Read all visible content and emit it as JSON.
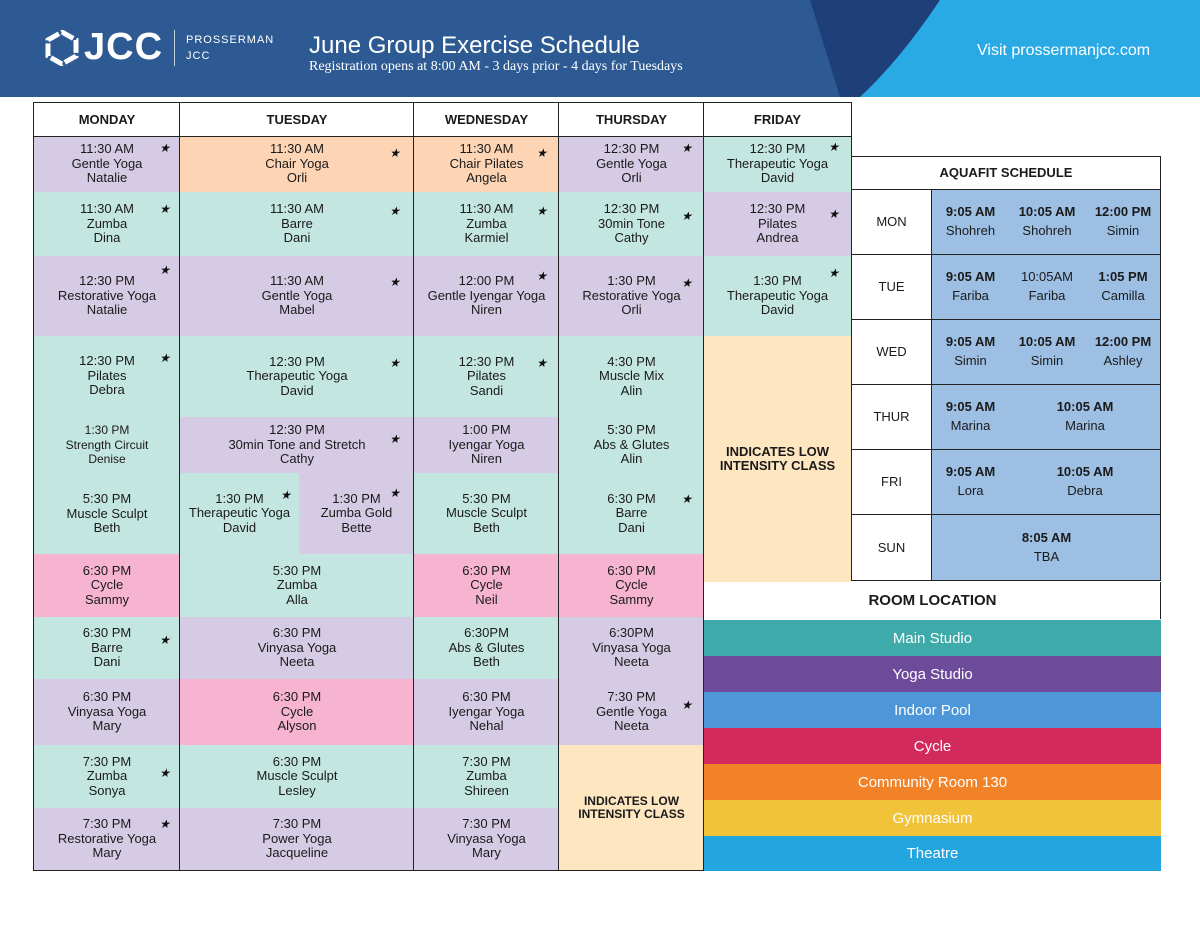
{
  "header": {
    "logo_text": "JCC",
    "logo_sub_line1": "PROSSERMAN",
    "logo_sub_line2": "JCC",
    "title": "June Group Exercise Schedule",
    "subtitle": "Registration opens at 8:00 AM - 3 days prior - 4 days for Tuesdays",
    "visit_text": "Visit prossermanjcc.com",
    "colors": {
      "dark_blue": "#2d5a93",
      "light_blue": "#2aaae4",
      "navy": "#1f3f78"
    }
  },
  "days": [
    "MONDAY",
    "TUESDAY",
    "WEDNESDAY",
    "THURSDAY",
    "FRIDAY"
  ],
  "legend_colors": {
    "teal": "#c4e6e1",
    "purple": "#d6cbe4",
    "peach": "#fdd4b4",
    "pink": "#f6b4d1",
    "cream": "#fde6c0"
  },
  "classes": [
    {
      "day": "MONDAY",
      "time": "11:30 AM",
      "name": "Gentle Yoga",
      "instructor": "Natalie",
      "color": "purple",
      "star": true
    },
    {
      "day": "MONDAY",
      "time": "11:30 AM",
      "name": "Zumba",
      "instructor": "Dina",
      "color": "teal",
      "star": true
    },
    {
      "day": "MONDAY",
      "time": "12:30 PM",
      "name": "Restorative Yoga",
      "instructor": "Natalie",
      "color": "purple",
      "star": true
    },
    {
      "day": "MONDAY",
      "time": "12:30 PM",
      "name": "Pilates",
      "instructor": "Debra",
      "color": "teal",
      "star": true
    },
    {
      "day": "MONDAY",
      "time": "1:30 PM",
      "name": "Strength Circuit",
      "instructor": "Denise",
      "color": "teal",
      "star": false
    },
    {
      "day": "MONDAY",
      "time": "5:30 PM",
      "name": "Muscle Sculpt",
      "instructor": "Beth",
      "color": "teal",
      "star": false
    },
    {
      "day": "MONDAY",
      "time": "6:30 PM",
      "name": "Cycle",
      "instructor": "Sammy",
      "color": "pink",
      "star": false
    },
    {
      "day": "MONDAY",
      "time": "6:30 PM",
      "name": "Barre",
      "instructor": "Dani",
      "color": "teal",
      "star": true
    },
    {
      "day": "MONDAY",
      "time": "6:30 PM",
      "name": "Vinyasa Yoga",
      "instructor": "Mary",
      "color": "purple",
      "star": false
    },
    {
      "day": "MONDAY",
      "time": "7:30 PM",
      "name": "Zumba",
      "instructor": "Sonya",
      "color": "teal",
      "star": true
    },
    {
      "day": "MONDAY",
      "time": "7:30 PM",
      "name": "Restorative Yoga",
      "instructor": "Mary",
      "color": "purple",
      "star": true
    },
    {
      "day": "TUESDAY",
      "time": "11:30 AM",
      "name": "Chair Yoga",
      "instructor": "Orli",
      "color": "peach",
      "star": true
    },
    {
      "day": "TUESDAY",
      "time": "11:30 AM",
      "name": "Barre",
      "instructor": "Dani",
      "color": "teal",
      "star": true
    },
    {
      "day": "TUESDAY",
      "time": "11:30 AM",
      "name": "Gentle Yoga",
      "instructor": "Mabel",
      "color": "purple",
      "star": true
    },
    {
      "day": "TUESDAY",
      "time": "12:30 PM",
      "name": "Therapeutic Yoga",
      "instructor": "David",
      "color": "teal",
      "star": true
    },
    {
      "day": "TUESDAY",
      "time": "12:30 PM",
      "name": "30min Tone and Stretch",
      "instructor": "Cathy",
      "color": "purple",
      "star": true
    },
    {
      "day": "TUESDAY",
      "time": "1:30 PM",
      "name": "Therapeutic Yoga",
      "instructor": "David",
      "color": "teal",
      "star": true
    },
    {
      "day": "TUESDAY",
      "time": "1:30 PM",
      "name": "Zumba Gold",
      "instructor": "Bette",
      "color": "purple",
      "star": true
    },
    {
      "day": "TUESDAY",
      "time": "5:30 PM",
      "name": "Zumba",
      "instructor": "Alla",
      "color": "teal",
      "star": false
    },
    {
      "day": "TUESDAY",
      "time": "6:30 PM",
      "name": "Vinyasa Yoga",
      "instructor": "Neeta",
      "color": "purple",
      "star": false
    },
    {
      "day": "TUESDAY",
      "time": "6:30 PM",
      "name": "Cycle",
      "instructor": "Alyson",
      "color": "pink",
      "star": false
    },
    {
      "day": "TUESDAY",
      "time": "6:30 PM",
      "name": "Muscle Sculpt",
      "instructor": "Lesley",
      "color": "teal",
      "star": false
    },
    {
      "day": "TUESDAY",
      "time": "7:30 PM",
      "name": "Power Yoga",
      "instructor": "Jacqueline",
      "color": "purple",
      "star": false
    },
    {
      "day": "WEDNESDAY",
      "time": "11:30 AM",
      "name": "Chair Pilates",
      "instructor": "Angela",
      "color": "peach",
      "star": true
    },
    {
      "day": "WEDNESDAY",
      "time": "11:30 AM",
      "name": "Zumba",
      "instructor": "Karmiel",
      "color": "teal",
      "star": true
    },
    {
      "day": "WEDNESDAY",
      "time": "12:00 PM",
      "name": "Gentle Iyengar Yoga",
      "instructor": "Niren",
      "color": "purple",
      "star": true
    },
    {
      "day": "WEDNESDAY",
      "time": "12:30 PM",
      "name": "Pilates",
      "instructor": "Sandi",
      "color": "teal",
      "star": true
    },
    {
      "day": "WEDNESDAY",
      "time": "1:00 PM",
      "name": "Iyengar Yoga",
      "instructor": "Niren",
      "color": "purple",
      "star": false
    },
    {
      "day": "WEDNESDAY",
      "time": "5:30 PM",
      "name": "Muscle Sculpt",
      "instructor": "Beth",
      "color": "teal",
      "star": false
    },
    {
      "day": "WEDNESDAY",
      "time": "6:30 PM",
      "name": "Cycle",
      "instructor": "Neil",
      "color": "pink",
      "star": false
    },
    {
      "day": "WEDNESDAY",
      "time": "6:30PM",
      "name": "Abs & Glutes",
      "instructor": "Beth",
      "color": "teal",
      "star": false
    },
    {
      "day": "WEDNESDAY",
      "time": "6:30 PM",
      "name": "Iyengar Yoga",
      "instructor": "Nehal",
      "color": "purple",
      "star": false
    },
    {
      "day": "WEDNESDAY",
      "time": "7:30 PM",
      "name": "Zumba",
      "instructor": "Shireen",
      "color": "teal",
      "star": false
    },
    {
      "day": "WEDNESDAY",
      "time": "7:30 PM",
      "name": "Vinyasa Yoga",
      "instructor": "Mary",
      "color": "purple",
      "star": false
    },
    {
      "day": "THURSDAY",
      "time": "12:30 PM",
      "name": "Gentle Yoga",
      "instructor": "Orli",
      "color": "purple",
      "star": true
    },
    {
      "day": "THURSDAY",
      "time": "12:30 PM",
      "name": "30min Tone",
      "instructor": "Cathy",
      "color": "teal",
      "star": true
    },
    {
      "day": "THURSDAY",
      "time": "1:30 PM",
      "name": "Restorative Yoga",
      "instructor": "Orli",
      "color": "purple",
      "star": true
    },
    {
      "day": "THURSDAY",
      "time": "4:30 PM",
      "name": "Muscle Mix",
      "instructor": "Alin",
      "color": "teal",
      "star": false
    },
    {
      "day": "THURSDAY",
      "time": "5:30 PM",
      "name": "Abs & Glutes",
      "instructor": "Alin",
      "color": "teal",
      "star": false
    },
    {
      "day": "THURSDAY",
      "time": "6:30 PM",
      "name": "Barre",
      "instructor": "Dani",
      "color": "teal",
      "star": true
    },
    {
      "day": "THURSDAY",
      "time": "6:30 PM",
      "name": "Cycle",
      "instructor": "Sammy",
      "color": "pink",
      "star": false
    },
    {
      "day": "THURSDAY",
      "time": "6:30PM",
      "name": "Vinyasa Yoga",
      "instructor": "Neeta",
      "color": "purple",
      "star": false
    },
    {
      "day": "THURSDAY",
      "time": "7:30 PM",
      "name": "Gentle Yoga",
      "instructor": "Neeta",
      "color": "purple",
      "star": true
    },
    {
      "day": "FRIDAY",
      "time": "12:30 PM",
      "name": "Therapeutic Yoga",
      "instructor": "David",
      "color": "teal",
      "star": true
    },
    {
      "day": "FRIDAY",
      "time": "12:30 PM",
      "name": "Pilates",
      "instructor": "Andrea",
      "color": "purple",
      "star": true
    },
    {
      "day": "FRIDAY",
      "time": "1:30 PM",
      "name": "Therapeutic Yoga",
      "instructor": "David",
      "color": "teal",
      "star": true
    }
  ],
  "low_intensity_label_line1": "INDICATES LOW",
  "low_intensity_label_line2": "INTENSITY CLASS",
  "aquafit": {
    "title": "AQUAFIT SCHEDULE",
    "rows": [
      {
        "day": "MON",
        "sessions": [
          {
            "time": "9:05 AM",
            "instructor": "Shohreh",
            "bold": true
          },
          {
            "time": "10:05 AM",
            "instructor": "Shohreh",
            "bold": true
          },
          {
            "time": "12:00 PM",
            "instructor": "Simin",
            "bold": true
          }
        ]
      },
      {
        "day": "TUE",
        "sessions": [
          {
            "time": "9:05 AM",
            "instructor": "Fariba",
            "bold": true
          },
          {
            "time": "10:05AM",
            "instructor": "Fariba",
            "bold": false
          },
          {
            "time": "1:05 PM",
            "instructor": "Camilla",
            "bold": true
          }
        ]
      },
      {
        "day": "WED",
        "sessions": [
          {
            "time": "9:05 AM",
            "instructor": "Simin",
            "bold": true
          },
          {
            "time": "10:05 AM",
            "instructor": "Simin",
            "bold": true
          },
          {
            "time": "12:00 PM",
            "instructor": "Ashley",
            "bold": true
          }
        ]
      },
      {
        "day": "THUR",
        "sessions": [
          {
            "time": "9:05 AM",
            "instructor": "Marina",
            "bold": true
          },
          {
            "time": "10:05 AM",
            "instructor": "Marina",
            "bold": true
          }
        ]
      },
      {
        "day": "FRI",
        "sessions": [
          {
            "time": "9:05 AM",
            "instructor": "Lora",
            "bold": true
          },
          {
            "time": "10:05 AM",
            "instructor": "Debra",
            "bold": true
          }
        ]
      },
      {
        "day": "SUN",
        "sessions": [
          {
            "time": "8:05 AM",
            "instructor": "TBA",
            "bold": true
          }
        ]
      }
    ]
  },
  "room_location": {
    "title": "ROOM LOCATION",
    "rooms": [
      {
        "name": "Main Studio",
        "color": "#3eaaa9"
      },
      {
        "name": "Yoga Studio",
        "color": "#6e4a9b"
      },
      {
        "name": "Indoor Pool",
        "color": "#4d97d8"
      },
      {
        "name": "Cycle",
        "color": "#d22a5d"
      },
      {
        "name": "Community Room 130",
        "color": "#f28228"
      },
      {
        "name": "Gymnasium",
        "color": "#f1c33b"
      },
      {
        "name": "Theatre",
        "color": "#23a5e0"
      }
    ]
  }
}
